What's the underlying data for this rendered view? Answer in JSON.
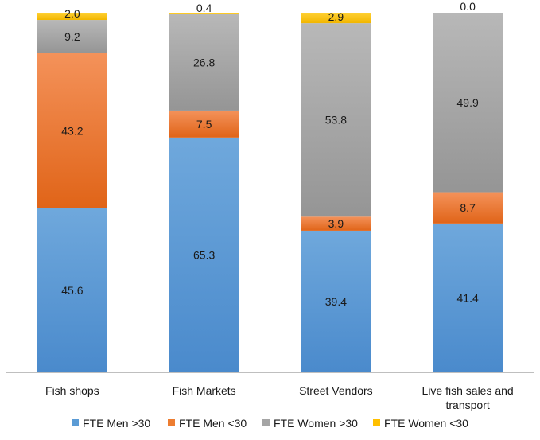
{
  "chart_data": {
    "type": "bar",
    "stacked": true,
    "categories": [
      "Fish shops",
      "Fish Markets",
      "Street Vendors",
      "Live fish sales and transport"
    ],
    "category_lines": [
      [
        "Fish shops"
      ],
      [
        "Fish Markets"
      ],
      [
        "Street Vendors"
      ],
      [
        "Live fish sales and",
        "transport"
      ]
    ],
    "series": [
      {
        "name": "FTE Men >30",
        "color": "#5b9bd5",
        "values": [
          45.6,
          65.3,
          39.4,
          41.4
        ],
        "labels": [
          "45.6",
          "65.3",
          "39.4",
          "41.4"
        ]
      },
      {
        "name": "FTE Men <30",
        "color": "#ed7d31",
        "values": [
          43.2,
          7.5,
          3.9,
          8.7
        ],
        "labels": [
          "43.2",
          "7.5",
          "3.9",
          "8.7"
        ]
      },
      {
        "name": "FTE Women >30",
        "color": "#a5a5a5",
        "values": [
          9.2,
          26.8,
          53.8,
          49.9
        ],
        "labels": [
          "9.2",
          "26.8",
          "53.8",
          "49.9"
        ]
      },
      {
        "name": "FTE Women <30",
        "color": "#ffc000",
        "values": [
          2.0,
          0.4,
          2.9,
          0.0
        ],
        "labels": [
          "2.0",
          "0.4",
          "2.9",
          "0.0"
        ]
      }
    ],
    "ylim": [
      0,
      100
    ],
    "title": "",
    "xlabel": "",
    "ylabel": "",
    "legend": "bottom",
    "grid": false
  }
}
